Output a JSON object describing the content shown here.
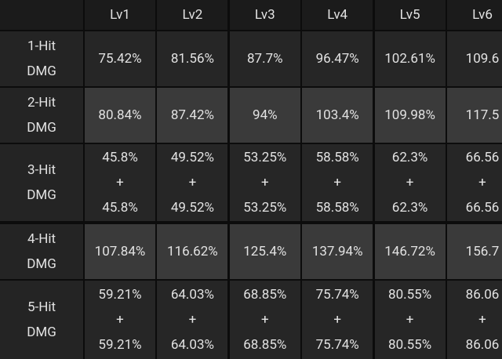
{
  "header": {
    "columns": [
      "Lv1",
      "Lv2",
      "Lv3",
      "Lv4",
      "Lv5",
      "Lv6"
    ]
  },
  "rows": [
    {
      "label": [
        "1-Hit",
        "DMG"
      ],
      "cells": [
        [
          "75.42%"
        ],
        [
          "81.56%"
        ],
        [
          "87.7%"
        ],
        [
          "96.47%"
        ],
        [
          "102.61%"
        ],
        [
          "109.6"
        ]
      ]
    },
    {
      "label": [
        "2-Hit",
        "DMG"
      ],
      "cells": [
        [
          "80.84%"
        ],
        [
          "87.42%"
        ],
        [
          "94%"
        ],
        [
          "103.4%"
        ],
        [
          "109.98%"
        ],
        [
          "117.5"
        ]
      ]
    },
    {
      "label": [
        "3-Hit",
        "DMG"
      ],
      "cells": [
        [
          "45.8%",
          "+",
          "45.8%"
        ],
        [
          "49.52%",
          "+",
          "49.52%"
        ],
        [
          "53.25%",
          "+",
          "53.25%"
        ],
        [
          "58.58%",
          "+",
          "58.58%"
        ],
        [
          "62.3%",
          "+",
          "62.3%"
        ],
        [
          "66.56",
          "+",
          "66.56"
        ]
      ]
    },
    {
      "label": [
        "4-Hit",
        "DMG"
      ],
      "cells": [
        [
          "107.84%"
        ],
        [
          "116.62%"
        ],
        [
          "125.4%"
        ],
        [
          "137.94%"
        ],
        [
          "146.72%"
        ],
        [
          "156.7"
        ]
      ]
    },
    {
      "label": [
        "5-Hit",
        "DMG"
      ],
      "cells": [
        [
          "59.21%",
          "+",
          "59.21%"
        ],
        [
          "64.03%",
          "+",
          "64.03%"
        ],
        [
          "68.85%",
          "+",
          "68.85%"
        ],
        [
          "75.74%",
          "+",
          "75.74%"
        ],
        [
          "80.55%",
          "+",
          "80.55%"
        ],
        [
          "86.06",
          "+",
          "86.06"
        ]
      ]
    }
  ]
}
